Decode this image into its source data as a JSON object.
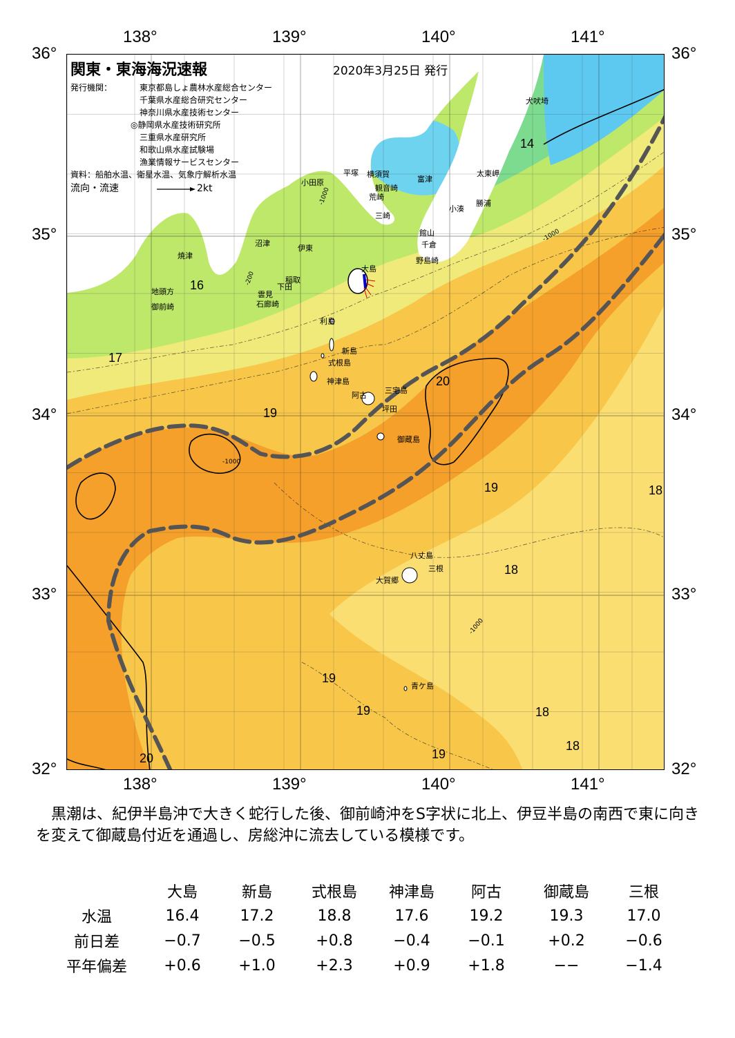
{
  "header": {
    "title": "関東・東海海況速報",
    "date": "2020年3月25日 発行"
  },
  "publishers": {
    "label": "発行機関：",
    "items": [
      "東京都島しょ農林水産総合センター",
      "千葉県水産総合研究センター",
      "神奈川県水産技術センター",
      "◎静岡県水産技術研究所",
      "三重県水産研究所",
      "和歌山県水産試験場",
      "漁業情報サービスセンター"
    ],
    "sources": "資料：船舶水温、衛星水温、気象庁解析水温",
    "flow_label": "流向・流速",
    "flow_scale": "2kt"
  },
  "axes": {
    "lon_ticks": [
      "138°",
      "139°",
      "140°",
      "141°"
    ],
    "lat_ticks": [
      "36°",
      "35°",
      "34°",
      "33°",
      "32°"
    ]
  },
  "places": {
    "inubosaki": "犬吠埼",
    "taitozaki": "太東岬",
    "katsuura": "勝浦",
    "kominato": "小湊",
    "futtsu": "富津",
    "yokosuka": "横須賀",
    "kannonzaki": "観音崎",
    "hiratsuka": "平塚",
    "odawara": "小田原",
    "arasaki": "荒崎",
    "misaki": "三崎",
    "tateyama": "館山",
    "chikura": "千倉",
    "nojimazaki": "野島崎",
    "numazu": "沼津",
    "ito": "伊東",
    "inatori": "稲取",
    "shimoda": "下田",
    "kumomi": "雲見",
    "irozaki": "石廊崎",
    "yaizu": "焼津",
    "chitogata": "地頭方",
    "omaezaki": "御前崎",
    "oshima": "大島",
    "toshima": "利島",
    "niijima": "新島",
    "shikinejima": "式根島",
    "kozushima": "神津島",
    "ako": "阿古",
    "miyakejima": "三宅島",
    "tsubota": "坪田",
    "mikurajima": "御蔵島",
    "hachijojima": "八丈島",
    "mitsune": "三根",
    "okago": "大賀郷",
    "aogashima": "青ケ島"
  },
  "isotherm_labels": {
    "t14": "14",
    "t16": "16",
    "t17": "17",
    "t19a": "19",
    "t20a": "20",
    "t19b": "19",
    "t18a": "18",
    "t18b": "18",
    "t19c": "19",
    "t19d": "19",
    "t18c": "18",
    "t18d": "18",
    "t19e": "19",
    "t20b": "20"
  },
  "depth_labels": [
    "-200",
    "-1000"
  ],
  "description": "　黒潮は、紀伊半島沖で大きく蛇行した後、御前崎沖をS字状に北上、伊豆半島の南西で東に向きを変えて御蔵島付近を通過し、房総沖に流去している模様です。",
  "table": {
    "columns": [
      "大島",
      "新島",
      "式根島",
      "神津島",
      "阿古",
      "御蔵島",
      "三根"
    ],
    "rows": [
      {
        "label": "水温",
        "values": [
          "16.4",
          "17.2",
          "18.8",
          "17.6",
          "19.2",
          "19.3",
          "17.0"
        ]
      },
      {
        "label": "前日差",
        "values": [
          "−0.7",
          "−0.5",
          "+0.8",
          "−0.4",
          "−0.1",
          "+0.2",
          "−0.6"
        ]
      },
      {
        "label": "平年偏差",
        "values": [
          "+0.6",
          "+1.0",
          "+2.3",
          "+0.9",
          "+1.8",
          "−−",
          "−1.4"
        ]
      }
    ]
  },
  "colors": {
    "cold": "#5ec9f0",
    "cool": "#8ee08a",
    "mild": "#d8f07a",
    "warm": "#fbe077",
    "warmer": "#f8c74a",
    "kuroshio": "#f5a02a",
    "land": "#ffffff",
    "kuroshio_axis": "#555555"
  }
}
